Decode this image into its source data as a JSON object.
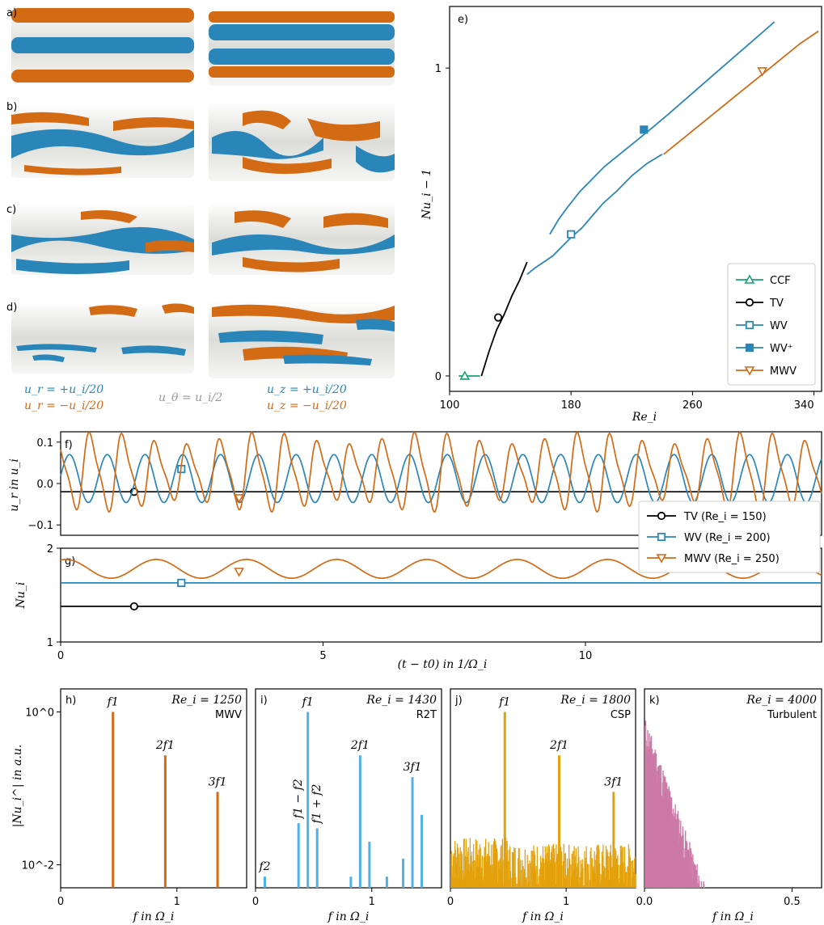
{
  "colors": {
    "ccf": "#17a374",
    "tv": "#000000",
    "wv": "#2a86b9",
    "mwv": "#d36a14",
    "csp": "#e3a10c",
    "turb": "#cc79a7",
    "r2t": "#4fb2e6",
    "surf": "#e9e9e6"
  },
  "renders": {
    "labels": [
      "a)",
      "b)",
      "c)",
      "d)"
    ],
    "legend": {
      "ur_pos": "u_r = +u_i/20",
      "ur_neg": "u_r = −u_i/20",
      "utheta": "u_θ = u_i/2",
      "uz_pos": "u_z = +u_i/20",
      "uz_neg": "u_z = −u_i/20"
    }
  },
  "chart_data": [
    {
      "id": "e",
      "panel_label": "e)",
      "type": "line",
      "xlabel": "Re_i",
      "ylabel": "Nu_i − 1",
      "xlim": [
        100,
        345
      ],
      "ylim": [
        -0.05,
        1.2
      ],
      "xticks": [
        100,
        180,
        260,
        340
      ],
      "yticks": [
        0,
        1
      ],
      "legend_position": "lower right",
      "series": [
        {
          "name": "CCF",
          "color": "ccf",
          "marker": "triangle-up",
          "filled": false,
          "x": [
            106,
            120
          ],
          "y": [
            0,
            0
          ],
          "marker_at": [
            110,
            0
          ]
        },
        {
          "name": "TV",
          "color": "tv",
          "marker": "circle",
          "filled": false,
          "x": [
            121,
            126,
            131,
            136,
            141,
            146,
            151
          ],
          "y": [
            0,
            0.08,
            0.15,
            0.2,
            0.26,
            0.31,
            0.37
          ],
          "marker_at": [
            132,
            0.19
          ]
        },
        {
          "name": "WV",
          "color": "wv",
          "marker": "square",
          "filled": false,
          "x": [
            151,
            156,
            162,
            168,
            174,
            180,
            187,
            194,
            201,
            210,
            220,
            230,
            240
          ],
          "y": [
            0.33,
            0.35,
            0.37,
            0.39,
            0.42,
            0.45,
            0.48,
            0.52,
            0.56,
            0.6,
            0.65,
            0.69,
            0.72
          ],
          "marker_at": [
            180,
            0.46
          ]
        },
        {
          "name": "WV⁺",
          "color": "wv",
          "marker": "square",
          "filled": true,
          "x": [
            166,
            172,
            178,
            186,
            194,
            202,
            212,
            222,
            232,
            244,
            258,
            272,
            286,
            300,
            314
          ],
          "y": [
            0.46,
            0.51,
            0.55,
            0.6,
            0.64,
            0.68,
            0.72,
            0.76,
            0.8,
            0.85,
            0.91,
            0.97,
            1.03,
            1.09,
            1.15
          ],
          "marker_at": [
            228,
            0.8
          ]
        },
        {
          "name": "MWV",
          "color": "mwv",
          "marker": "triangle-down",
          "filled": false,
          "x": [
            241,
            251,
            261,
            271,
            281,
            291,
            301,
            311,
            321,
            331,
            343
          ],
          "y": [
            0.72,
            0.76,
            0.8,
            0.84,
            0.88,
            0.92,
            0.96,
            1.0,
            1.04,
            1.08,
            1.12
          ],
          "marker_at": [
            306,
            0.99
          ]
        }
      ]
    },
    {
      "id": "f",
      "panel_label": "f)",
      "type": "line",
      "ylabel": "u_r in u_i",
      "xlim": [
        0,
        14.5
      ],
      "ylim": [
        -0.125,
        0.125
      ],
      "yticks": [
        -0.1,
        0.0,
        0.1
      ],
      "ytick_labels": [
        "−0.1",
        "0.0",
        "0.1"
      ],
      "legend_position": "lower right",
      "series": [
        {
          "name": "TV (Re_i = 150)",
          "color": "tv",
          "marker": "circle",
          "kind": "constant",
          "value": -0.02,
          "marker_at": [
            1.4,
            -0.02
          ]
        },
        {
          "name": "WV (Re_i = 200)",
          "color": "wv",
          "marker": "square",
          "kind": "oscillation",
          "mean": 0.012,
          "amplitude": 0.058,
          "period": 0.72,
          "phase": 0.1,
          "marker_at": [
            2.3,
            0.035
          ]
        },
        {
          "name": "MWV (Re_i = 250)",
          "color": "mwv",
          "marker": "triangle-down",
          "kind": "oscillation",
          "mean": 0.028,
          "amplitude": 0.075,
          "period": 0.62,
          "phase": 2.0,
          "modulation": 0.18,
          "marker_at": [
            3.4,
            -0.035
          ]
        }
      ]
    },
    {
      "id": "g",
      "panel_label": "g)",
      "type": "line",
      "xlabel": "(t − t0) in 1/Ω_i",
      "ylabel": "Nu_i",
      "xlim": [
        0,
        14.5
      ],
      "ylim": [
        1,
        2
      ],
      "xticks": [
        0,
        5,
        10
      ],
      "yticks": [
        1,
        2
      ],
      "series": [
        {
          "name": "TV",
          "color": "tv",
          "marker": "circle",
          "kind": "constant",
          "value": 1.38,
          "marker_at": [
            1.4,
            1.38
          ]
        },
        {
          "name": "WV",
          "color": "wv",
          "marker": "square",
          "kind": "constant",
          "value": 1.63,
          "marker_at": [
            2.3,
            1.63
          ]
        },
        {
          "name": "MWV",
          "color": "mwv",
          "marker": "triangle-down",
          "kind": "oscillation",
          "mean": 1.78,
          "amplitude": 0.1,
          "period": 1.72,
          "phase": 1.2,
          "marker_at": [
            3.4,
            1.75
          ]
        }
      ]
    },
    {
      "id": "h",
      "panel_label": "h)",
      "type": "bar",
      "xlabel": "f in Ω_i",
      "ylabel": "|Nu_i^| in a.u.",
      "log_y": true,
      "xlim": [
        0,
        1.6
      ],
      "ylim": [
        0.005,
        2
      ],
      "xticks": [
        0,
        1
      ],
      "yticks": [
        1,
        0.01
      ],
      "ytick_labels": [
        "10^0",
        "10^-2"
      ],
      "title_lines": [
        "Re_i = 1250",
        "MWV"
      ],
      "color": "mwv",
      "peaks": [
        {
          "f": 0.45,
          "a": 1.0,
          "label": "f1"
        },
        {
          "f": 0.9,
          "a": 0.27,
          "label": "2f1"
        },
        {
          "f": 1.35,
          "a": 0.09,
          "label": "3f1"
        }
      ]
    },
    {
      "id": "i",
      "panel_label": "i)",
      "type": "bar",
      "xlabel": "f in Ω_i",
      "log_y": true,
      "xlim": [
        0,
        1.6
      ],
      "ylim": [
        0.005,
        2
      ],
      "xticks": [
        0,
        1
      ],
      "title_lines": [
        "Re_i = 1430",
        "R2T"
      ],
      "color": "r2t",
      "peaks": [
        {
          "f": 0.08,
          "a": 0.007,
          "label": "f2"
        },
        {
          "f": 0.37,
          "a": 0.035,
          "label": "f1 − f2"
        },
        {
          "f": 0.45,
          "a": 1.0,
          "label": "f1"
        },
        {
          "f": 0.53,
          "a": 0.03,
          "label": "f1 + f2"
        },
        {
          "f": 0.82,
          "a": 0.007
        },
        {
          "f": 0.9,
          "a": 0.27,
          "label": "2f1"
        },
        {
          "f": 0.98,
          "a": 0.02
        },
        {
          "f": 1.13,
          "a": 0.007
        },
        {
          "f": 1.27,
          "a": 0.012
        },
        {
          "f": 1.35,
          "a": 0.14,
          "label": "3f1"
        },
        {
          "f": 1.43,
          "a": 0.045
        }
      ]
    },
    {
      "id": "j",
      "panel_label": "j)",
      "type": "bar",
      "xlabel": "f in Ω_i",
      "log_y": true,
      "xlim": [
        0,
        1.6
      ],
      "ylim": [
        0.005,
        2
      ],
      "xticks": [
        0,
        1
      ],
      "title_lines": [
        "Re_i = 1800",
        "CSP"
      ],
      "color": "csp",
      "noise_floor": 0.009,
      "peaks": [
        {
          "f": 0.47,
          "a": 1.0,
          "label": "f1"
        },
        {
          "f": 0.94,
          "a": 0.27,
          "label": "2f1"
        },
        {
          "f": 1.41,
          "a": 0.09,
          "label": "3f1"
        }
      ]
    },
    {
      "id": "k",
      "panel_label": "k)",
      "type": "area",
      "xlabel": "f in Ω_i",
      "log_y": true,
      "xlim": [
        0,
        0.6
      ],
      "ylim": [
        0.005,
        2
      ],
      "xticks": [
        0.0,
        0.5
      ],
      "xtick_labels": [
        "0.0",
        "0.5"
      ],
      "title_lines": [
        "Re_i = 4000",
        "Turbulent"
      ],
      "color": "turb",
      "envelope": {
        "start": 0.9,
        "decay_per_unit": 18.0,
        "cutoff": 0.39
      }
    }
  ]
}
